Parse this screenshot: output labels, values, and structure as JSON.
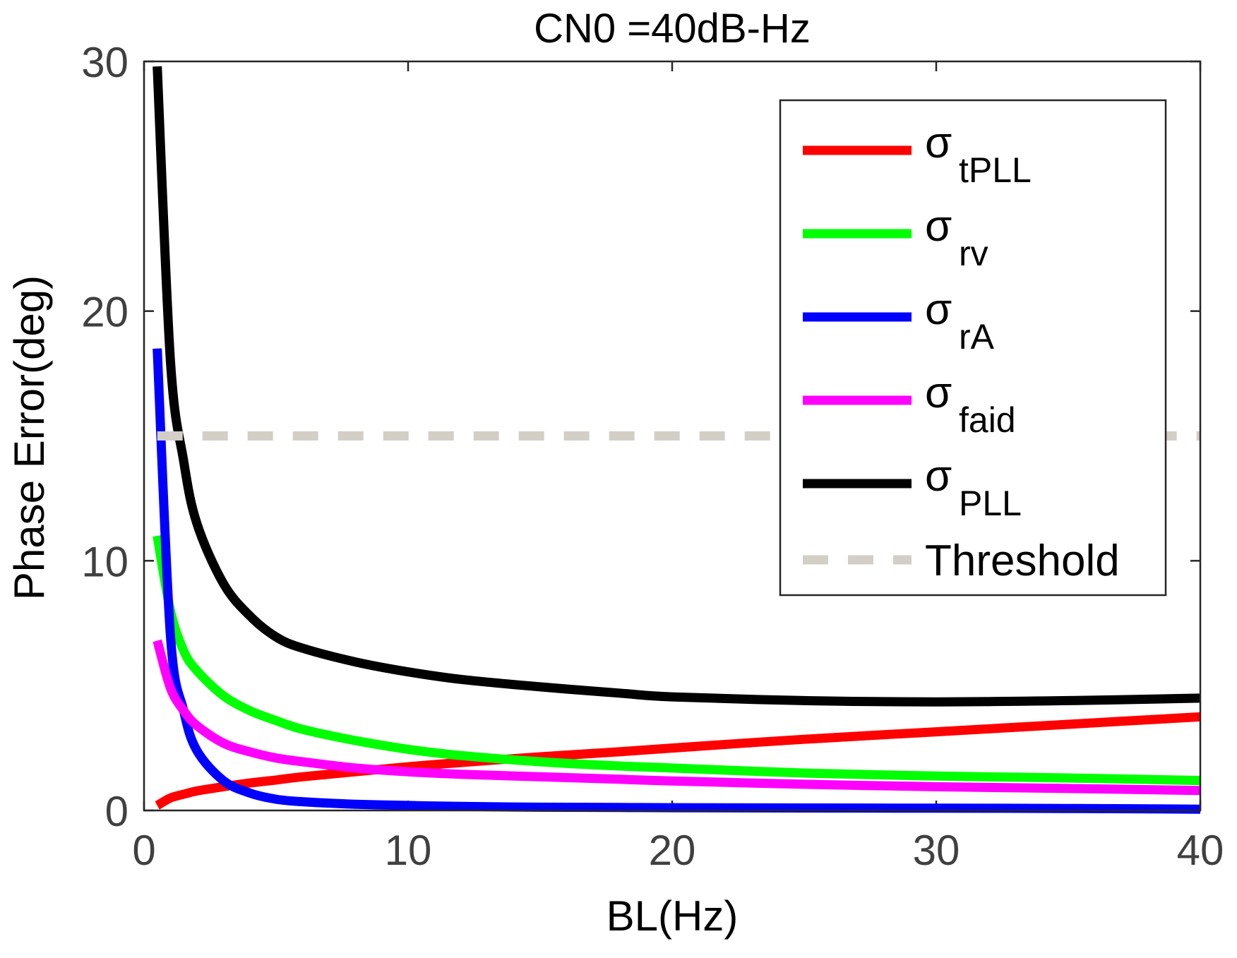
{
  "chart_data": {
    "type": "line",
    "title": "CN0 =40dB-Hz",
    "xlabel": "BL(Hz)",
    "ylabel": "Phase Error(deg)",
    "xlim": [
      0,
      40
    ],
    "ylim": [
      0,
      30
    ],
    "xticks": [
      0,
      10,
      20,
      30,
      40
    ],
    "yticks": [
      0,
      10,
      20,
      30
    ],
    "x": [
      0.5,
      1,
      1.5,
      2,
      3,
      4,
      5,
      6,
      8,
      10,
      12,
      15,
      18,
      20,
      25,
      30,
      35,
      40
    ],
    "series": [
      {
        "name": "tPLL",
        "symbol": "σ",
        "sub": "tPLL",
        "color": "#ff0000",
        "dash": false,
        "values": [
          0.2,
          0.5,
          0.65,
          0.78,
          0.95,
          1.1,
          1.22,
          1.35,
          1.55,
          1.75,
          1.92,
          2.15,
          2.35,
          2.5,
          2.85,
          3.15,
          3.45,
          3.75
        ]
      },
      {
        "name": "rv",
        "symbol": "σ",
        "sub": "rv",
        "color": "#00ff00",
        "dash": false,
        "values": [
          11.0,
          8.0,
          6.4,
          5.6,
          4.6,
          4.0,
          3.6,
          3.25,
          2.8,
          2.45,
          2.2,
          1.95,
          1.78,
          1.7,
          1.5,
          1.38,
          1.3,
          1.2
        ]
      },
      {
        "name": "rA",
        "symbol": "σ",
        "sub": "rA",
        "color": "#0000ff",
        "dash": false,
        "values": [
          18.5,
          7.0,
          4.0,
          2.4,
          1.2,
          0.7,
          0.45,
          0.35,
          0.25,
          0.2,
          0.16,
          0.13,
          0.12,
          0.11,
          0.1,
          0.09,
          0.08,
          0.05
        ]
      },
      {
        "name": "faid",
        "symbol": "σ",
        "sub": "faid",
        "color": "#ff00ff",
        "dash": false,
        "values": [
          6.8,
          4.9,
          4.0,
          3.4,
          2.7,
          2.35,
          2.1,
          1.95,
          1.7,
          1.55,
          1.45,
          1.35,
          1.25,
          1.18,
          1.05,
          0.95,
          0.88,
          0.8
        ]
      },
      {
        "name": "PLL",
        "symbol": "σ",
        "sub": "PLL",
        "color": "#000000",
        "dash": false,
        "values": [
          29.8,
          18.0,
          14.0,
          11.5,
          9.1,
          7.8,
          6.95,
          6.5,
          5.95,
          5.55,
          5.25,
          4.95,
          4.7,
          4.55,
          4.4,
          4.35,
          4.4,
          4.5
        ]
      },
      {
        "name": "Threshold",
        "symbol": "",
        "sub": "",
        "label": "Threshold",
        "color": "#d3cfc7",
        "dash": true,
        "values": [
          15,
          15,
          15,
          15,
          15,
          15,
          15,
          15,
          15,
          15,
          15,
          15,
          15,
          15,
          15,
          15,
          15,
          15
        ]
      }
    ],
    "legend_position": "top-right",
    "grid": false
  }
}
